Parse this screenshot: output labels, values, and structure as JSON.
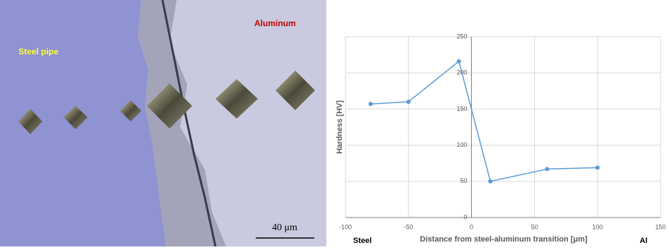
{
  "image": {
    "labels": {
      "steel": "Steel pipe",
      "aluminum": "Aluminum",
      "scale": "40 μm"
    }
  },
  "chart_data": {
    "type": "line",
    "x_label": "Distance from steel-aluminum transition [μm]",
    "y_label": "Hardness [HV]",
    "annotations": [
      "Steel",
      "Al"
    ],
    "x": [
      -80,
      -50,
      -10,
      15,
      60,
      100
    ],
    "series": [
      {
        "color": "#5b9bd5",
        "values": [
          157,
          160,
          216,
          50,
          67,
          69
        ]
      }
    ],
    "xlim": [
      -100,
      150
    ],
    "xticks": [
      -100,
      -50,
      0,
      50,
      100,
      150
    ],
    "ylim": [
      0,
      250
    ],
    "yticks": [
      0,
      50,
      100,
      150,
      200,
      250
    ],
    "grid": true
  }
}
